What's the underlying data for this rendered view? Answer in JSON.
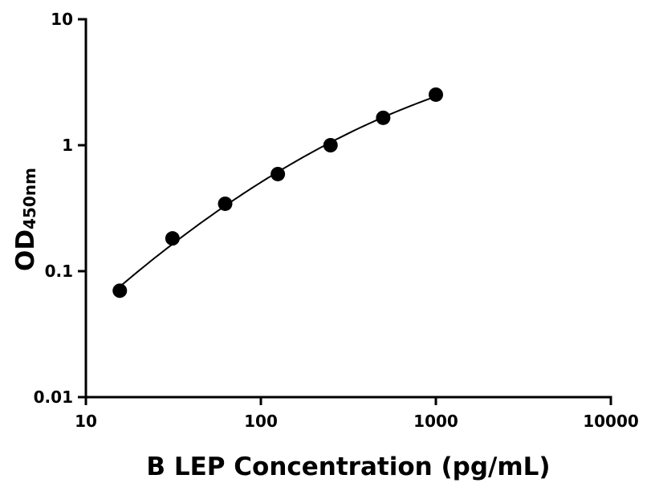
{
  "chart_data": {
    "type": "scatter",
    "xlabel": "B LEP Concentration (pg/mL)",
    "ylabel": "OD",
    "ylabel_subscript": "450nm",
    "x_scale": "log",
    "y_scale": "log",
    "xlim": [
      10,
      10000
    ],
    "ylim": [
      0.01,
      10
    ],
    "x_ticks": [
      "10",
      "100",
      "1000",
      "10000"
    ],
    "y_ticks": [
      "0.01",
      "0.1",
      "1",
      "10"
    ],
    "grid": false,
    "fit_curve": true,
    "marker_color": "#000000",
    "points": [
      {
        "x": 15.625,
        "y": 0.07
      },
      {
        "x": 31.25,
        "y": 0.182
      },
      {
        "x": 62.5,
        "y": 0.343
      },
      {
        "x": 125,
        "y": 0.59
      },
      {
        "x": 250,
        "y": 1.0
      },
      {
        "x": 500,
        "y": 1.65
      },
      {
        "x": 1000,
        "y": 2.52
      }
    ]
  }
}
